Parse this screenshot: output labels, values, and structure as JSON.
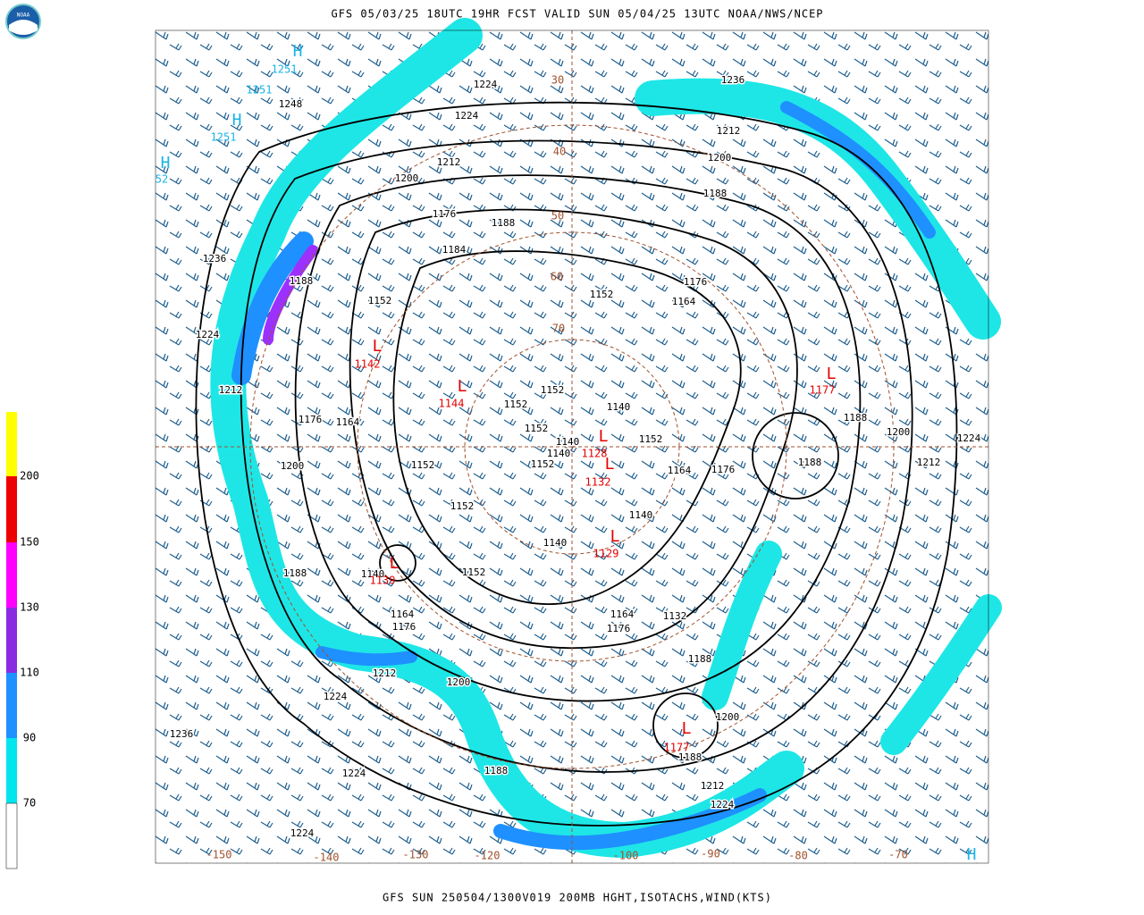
{
  "header": {
    "title": "GFS 05/03/25 18UTC 19HR FCST VALID SUN 05/04/25 13UTC NOAA/NWS/NCEP",
    "logo": "NOAA"
  },
  "footer": "GFS SUN 250504/1300V019 200MB HGHT,ISOTACHS,WIND(KTS)",
  "legend": {
    "labels": [
      "200",
      "150",
      "130",
      "110",
      "90",
      "70"
    ]
  },
  "map": {
    "contour_labels": [
      "1236",
      "1224",
      "1224",
      "1248",
      "1212",
      "1200",
      "1212",
      "1200",
      "1188",
      "1176",
      "1188",
      "1184",
      "1236",
      "1188",
      "1152",
      "1176",
      "1164",
      "1152",
      "1224",
      "1212",
      "1152",
      "1152",
      "1140",
      "1188",
      "1176",
      "1164",
      "1152",
      "1200",
      "1224",
      "1140",
      "1152",
      "1140",
      "1200",
      "1152",
      "1152",
      "1164",
      "1176",
      "1188",
      "1212",
      "1152",
      "1140",
      "1140",
      "1188",
      "1140",
      "1152",
      "1164",
      "1164",
      "1132",
      "1176",
      "1176",
      "1188",
      "1212",
      "1200",
      "1224",
      "1200",
      "1236",
      "1188",
      "1188",
      "1224",
      "1212",
      "1224",
      "1224"
    ],
    "highs": [
      "H",
      "H",
      "H",
      "H"
    ],
    "high_values": [
      "1251",
      "1251",
      "1251",
      "52"
    ],
    "lows": [
      "L",
      "L",
      "L",
      "L",
      "L",
      "L",
      "L",
      "L"
    ],
    "low_values": [
      "1142",
      "1144",
      "1128",
      "1132",
      "1177",
      "1139",
      "1129",
      "1177"
    ],
    "longitudes": [
      "-150",
      "-140",
      "-130",
      "-120",
      "-100",
      "-90",
      "-80",
      "-70"
    ],
    "latitudes": [
      "30",
      "40",
      "50",
      "60",
      "70"
    ]
  }
}
